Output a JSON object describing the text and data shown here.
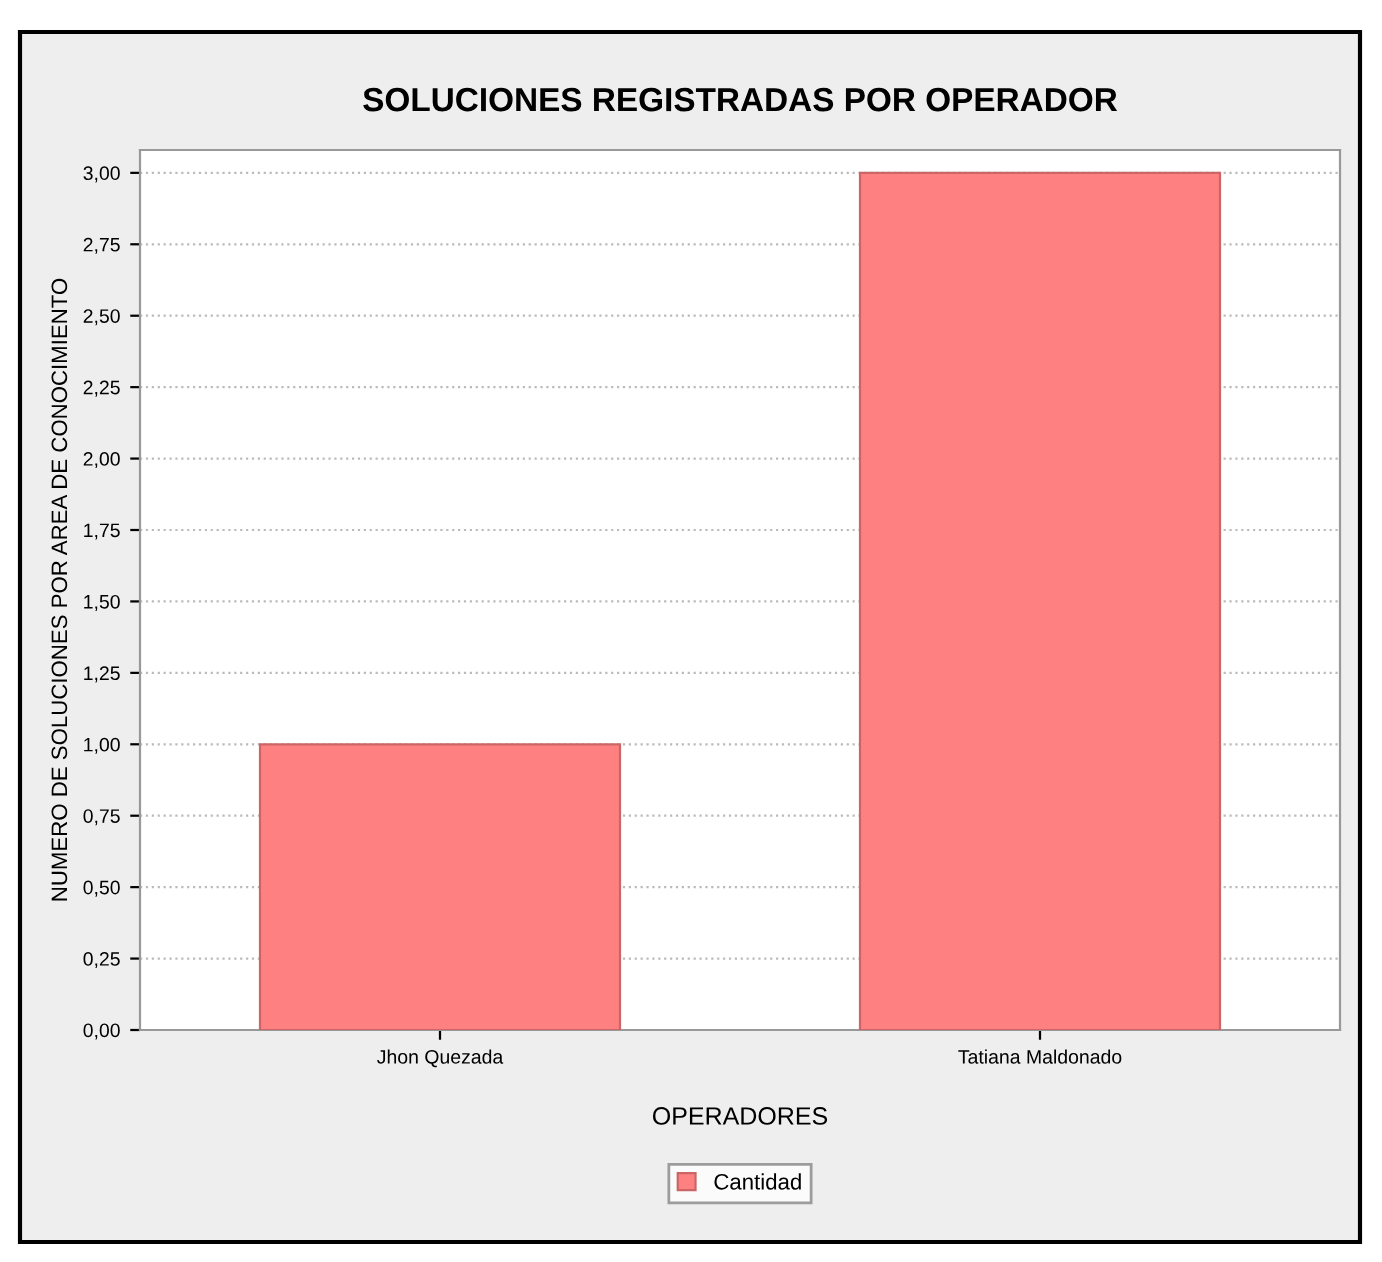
{
  "chart_data": {
    "type": "bar",
    "title": "SOLUCIONES REGISTRADAS POR OPERADOR",
    "xlabel": "OPERADORES",
    "ylabel": "NUMERO DE SOLUCIONES POR AREA DE CONOCIMIENTO",
    "categories": [
      "Jhon Quezada",
      "Tatiana Maldonado"
    ],
    "series": [
      {
        "name": "Cantidad",
        "color": "#ff8080",
        "values": [
          1,
          3
        ]
      }
    ],
    "ylim": [
      0,
      3.08
    ],
    "yticks": [
      {
        "value": 0,
        "label": "0,00"
      },
      {
        "value": 0.25,
        "label": "0,25"
      },
      {
        "value": 0.5,
        "label": "0,50"
      },
      {
        "value": 0.75,
        "label": "0,75"
      },
      {
        "value": 1,
        "label": "1,00"
      },
      {
        "value": 1.25,
        "label": "1,25"
      },
      {
        "value": 1.5,
        "label": "1,50"
      },
      {
        "value": 1.75,
        "label": "1,75"
      },
      {
        "value": 2,
        "label": "2,00"
      },
      {
        "value": 2.25,
        "label": "2,25"
      },
      {
        "value": 2.5,
        "label": "2,50"
      },
      {
        "value": 2.75,
        "label": "2,75"
      },
      {
        "value": 3,
        "label": "3,00"
      }
    ],
    "grid": "y",
    "legend": "bottom"
  }
}
